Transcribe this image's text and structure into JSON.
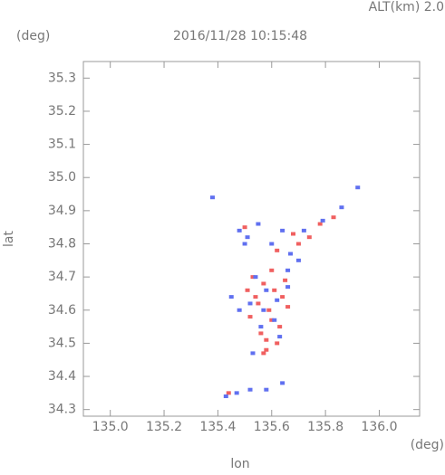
{
  "chart_data": {
    "type": "scatter",
    "title": "2016/11/28 10:15:48",
    "annotation": "ALT(km) 2.0",
    "xlabel": "lon",
    "xunit": "(deg)",
    "ylabel": "lat",
    "yunit": "(deg)",
    "xlim": [
      134.9,
      136.15
    ],
    "ylim": [
      34.28,
      35.35
    ],
    "xticks": [
      {
        "value": 135,
        "label": "135.0"
      },
      135.2,
      135.4,
      135.6,
      135.8,
      {
        "value": 136,
        "label": "136.0"
      }
    ],
    "yticks": [
      34.3,
      34.4,
      34.5,
      34.6,
      34.7,
      34.8,
      34.9,
      {
        "value": 35,
        "label": "35.0"
      },
      35.1,
      35.2,
      35.3
    ],
    "series": [
      {
        "color": "#f06060",
        "x": [
          135.53,
          135.57,
          135.61,
          135.64,
          135.55,
          135.59,
          135.66,
          135.52,
          135.6,
          135.63,
          135.56,
          135.58,
          135.62,
          135.54,
          135.65,
          135.6,
          135.57,
          135.51,
          135.7,
          135.68,
          135.78,
          135.83,
          135.74,
          135.62,
          135.58,
          135.44,
          135.5
        ],
        "y": [
          34.7,
          34.68,
          34.66,
          34.64,
          34.62,
          34.6,
          34.61,
          34.58,
          34.57,
          34.55,
          34.53,
          34.51,
          34.5,
          34.64,
          34.69,
          34.72,
          34.47,
          34.66,
          34.8,
          34.83,
          34.86,
          34.88,
          34.82,
          34.78,
          34.48,
          34.35,
          34.85
        ]
      },
      {
        "color": "#6070f0",
        "x": [
          135.38,
          135.92,
          135.48,
          135.51,
          135.55,
          135.6,
          135.64,
          135.67,
          135.54,
          135.58,
          135.62,
          135.66,
          135.57,
          135.61,
          135.63,
          135.56,
          135.52,
          135.45,
          135.48,
          135.5,
          135.72,
          135.79,
          135.86,
          135.66,
          135.7,
          135.43,
          135.47,
          135.52,
          135.58,
          135.64,
          135.53
        ],
        "y": [
          34.94,
          34.97,
          34.84,
          34.82,
          34.86,
          34.8,
          34.84,
          34.77,
          34.7,
          34.66,
          34.63,
          34.67,
          34.6,
          34.57,
          34.52,
          34.55,
          34.62,
          34.64,
          34.6,
          34.8,
          34.84,
          34.87,
          34.91,
          34.72,
          34.75,
          34.34,
          34.35,
          34.36,
          34.36,
          34.38,
          34.47
        ]
      }
    ]
  }
}
